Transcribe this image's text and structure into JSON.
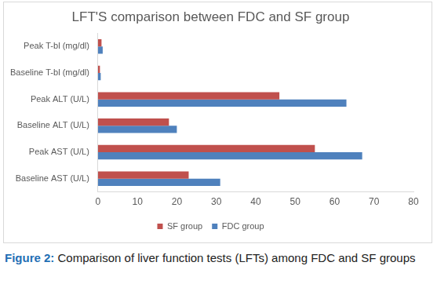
{
  "chart_data": {
    "type": "bar",
    "orientation": "horizontal",
    "title": "LFT'S comparison between FDC and SF group",
    "categories": [
      "Peak T-bl (mg/dl)",
      "Baseline T-bl (mg/dl)",
      "Peak ALT (U/L)",
      "Baseline ALT (U/L)",
      "Peak AST (U/L)",
      "Baseline AST (U/L)"
    ],
    "series": [
      {
        "name": "SF group",
        "color": "#c0504d",
        "values": [
          0.9,
          0.5,
          46,
          18,
          55,
          23
        ]
      },
      {
        "name": "FDC group",
        "color": "#4f81bd",
        "values": [
          1.2,
          0.7,
          63,
          20,
          67,
          31
        ]
      }
    ],
    "xlim": [
      0,
      80
    ],
    "xticks": [
      0,
      10,
      20,
      30,
      40,
      50,
      60,
      70,
      80
    ],
    "grid": false,
    "legend": "bottom",
    "caption": {
      "label": "Figure 2:",
      "text": "Comparison of liver function tests (LFTs) among FDC and SF groups"
    }
  }
}
